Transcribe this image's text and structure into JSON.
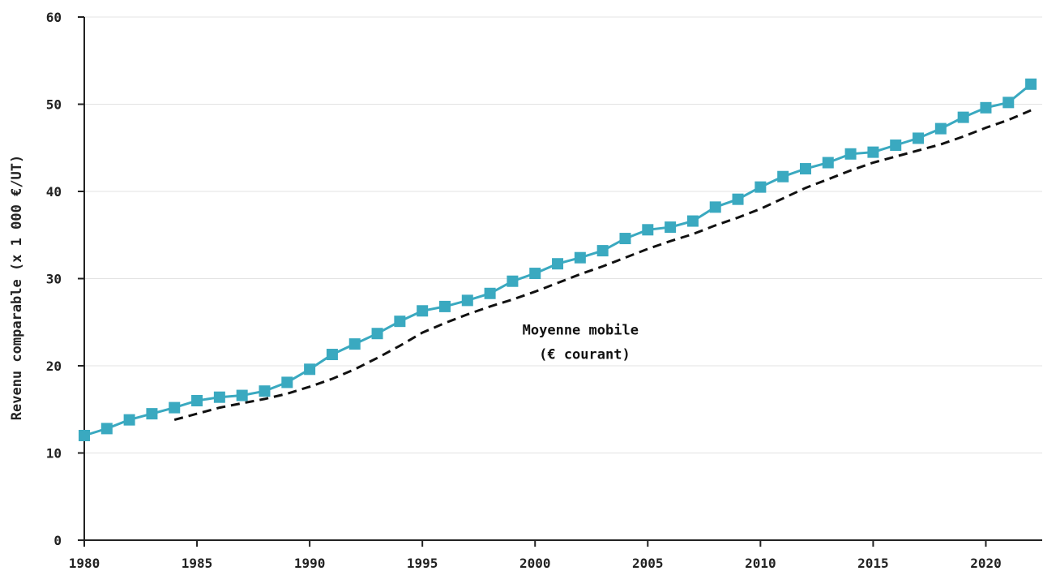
{
  "chart_data": {
    "type": "line",
    "title": "",
    "xlabel": "",
    "ylabel": "Revenu comparable (x 1 000 €/UT)",
    "xlim": [
      1980,
      2022.5
    ],
    "ylim": [
      0,
      60
    ],
    "x_ticks": [
      1980,
      1985,
      1990,
      1995,
      2000,
      2005,
      2010,
      2015,
      2020
    ],
    "y_ticks": [
      0,
      10,
      20,
      30,
      40,
      50,
      60
    ],
    "grid": "horizontal",
    "annotations": [
      {
        "line1": "Moyenne mobile",
        "line2": "(€ courant)",
        "x": 2002.2,
        "y": 23.6
      }
    ],
    "series": [
      {
        "style": "line-with-square-markers",
        "color": "#3aa9c0",
        "x": [
          1980,
          1981,
          1982,
          1983,
          1984,
          1985,
          1986,
          1987,
          1988,
          1989,
          1990,
          1991,
          1992,
          1993,
          1994,
          1995,
          1996,
          1997,
          1998,
          1999,
          2000,
          2001,
          2002,
          2003,
          2004,
          2005,
          2006,
          2007,
          2008,
          2009,
          2010,
          2011,
          2012,
          2013,
          2014,
          2015,
          2016,
          2017,
          2018,
          2019,
          2020,
          2021,
          2022
        ],
        "values": [
          12.0,
          12.8,
          13.8,
          14.5,
          15.2,
          16.0,
          16.4,
          16.6,
          17.1,
          18.1,
          19.6,
          21.3,
          22.5,
          23.7,
          25.1,
          26.3,
          26.8,
          27.5,
          28.3,
          29.7,
          30.6,
          31.7,
          32.4,
          33.2,
          34.6,
          35.6,
          35.9,
          36.6,
          38.2,
          39.1,
          40.5,
          41.7,
          42.6,
          43.3,
          44.3,
          44.5,
          45.3,
          46.1,
          47.2,
          48.5,
          49.6,
          50.2,
          52.3
        ]
      },
      {
        "style": "dashed",
        "color": "#111111",
        "x": [
          1984,
          1985,
          1986,
          1987,
          1988,
          1989,
          1990,
          1991,
          1992,
          1993,
          1994,
          1995,
          1996,
          1997,
          1998,
          1999,
          2000,
          2001,
          2002,
          2003,
          2004,
          2005,
          2006,
          2007,
          2008,
          2009,
          2010,
          2011,
          2012,
          2013,
          2014,
          2015,
          2016,
          2017,
          2018,
          2019,
          2020,
          2021,
          2022
        ],
        "values": [
          13.8,
          14.5,
          15.2,
          15.7,
          16.2,
          16.8,
          17.6,
          18.5,
          19.6,
          20.9,
          22.3,
          23.8,
          24.9,
          25.9,
          26.8,
          27.6,
          28.5,
          29.5,
          30.5,
          31.4,
          32.4,
          33.4,
          34.3,
          35.1,
          36.1,
          37.0,
          38.0,
          39.2,
          40.4,
          41.4,
          42.4,
          43.3,
          44.0,
          44.7,
          45.4,
          46.3,
          47.3,
          48.2,
          49.3
        ]
      }
    ]
  }
}
